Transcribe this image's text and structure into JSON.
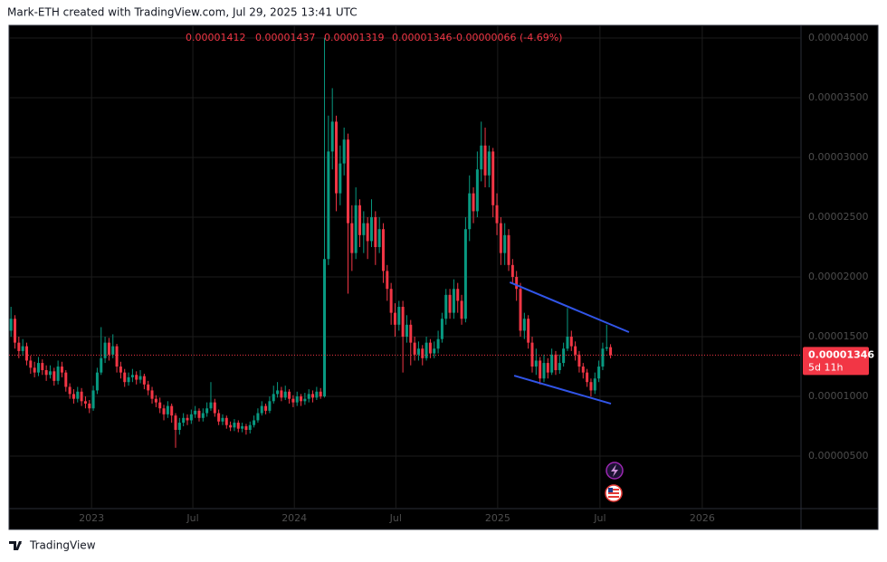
{
  "attribution": "Mark-ETH created with TradingView.com, Jul 29, 2025 13:41 UTC",
  "logo": "TradingView",
  "chart_data": {
    "type": "candlestick",
    "up_color": "#089981",
    "down_color": "#f23645",
    "header": {
      "open": "0.00001412",
      "high": "0.00001437",
      "low": "0.00001319",
      "close": "0.00001346",
      "change": "-0.00000066 (-4.69%)"
    },
    "price_tag": {
      "price": "0.00001346",
      "countdown": "5d 11h"
    },
    "ylim": [
      6.1e-07,
      4.106e-05
    ],
    "yticks": [
      {
        "value": 5e-06,
        "label": "0.00000500"
      },
      {
        "value": 1e-05,
        "label": "0.00001000"
      },
      {
        "value": 1.5e-05,
        "label": "0.00001500"
      },
      {
        "value": 2e-05,
        "label": "0.00002000"
      },
      {
        "value": 2.5e-05,
        "label": "0.00002500"
      },
      {
        "value": 3e-05,
        "label": "0.00003000"
      },
      {
        "value": 3.5e-05,
        "label": "0.00003500"
      },
      {
        "value": 4e-05,
        "label": "0.00004000"
      }
    ],
    "xlim": [
      -0.5,
      201.6
    ],
    "xticks": [
      {
        "value": 20.55,
        "label": "2023"
      },
      {
        "value": 46.4,
        "label": "Jul"
      },
      {
        "value": 72.3,
        "label": "2024"
      },
      {
        "value": 98.2,
        "label": "Jul"
      },
      {
        "value": 124.2,
        "label": "2025"
      },
      {
        "value": 150.3,
        "label": "Jul"
      },
      {
        "value": 176.4,
        "label": "2026"
      }
    ],
    "grid": true,
    "trendline_color": "#3155e8",
    "trendlines": [
      {
        "x": [
          127.3,
          157.7
        ],
        "y": [
          1.955e-05,
          1.538e-05
        ]
      },
      {
        "x": [
          128.4,
          153.1
        ],
        "y": [
          1.174e-05,
          9.39e-06
        ]
      }
    ],
    "open": [
      1.55e-05,
      1.65e-05,
      1.45e-05,
      1.38e-05,
      1.42e-05,
      1.3e-05,
      1.24e-05,
      1.2e-05,
      1.28e-05,
      1.22e-05,
      1.18e-05,
      1.21e-05,
      1.13e-05,
      1.25e-05,
      1.2e-05,
      1.08e-05,
      1.02e-05,
      9.8e-06,
      1.04e-05,
      9.6e-06,
      9.4e-06,
      9e-06,
      1.05e-05,
      1.2e-05,
      1.32e-05,
      1.45e-05,
      1.35e-05,
      1.42e-05,
      1.25e-05,
      1.2e-05,
      1.12e-05,
      1.16e-05,
      1.18e-05,
      1.14e-05,
      1.17e-05,
      1.1e-05,
      1.05e-05,
      9.8e-06,
      9.5e-06,
      9e-06,
      8.5e-06,
      9.2e-06,
      8.4e-06,
      7.2e-06,
      7.8e-06,
      8.2e-06,
      8e-06,
      8.5e-06,
      8.8e-06,
      8.2e-06,
      8.6e-06,
      9e-06,
      9.5e-06,
      8.6e-06,
      7.9e-06,
      8.2e-06,
      7.6e-06,
      7.4e-06,
      7.8e-06,
      7.3e-06,
      7.5e-06,
      7.2e-06,
      7.6e-06,
      8e-06,
      8.6e-06,
      9.2e-06,
      8.8e-06,
      9.6e-06,
      1.02e-05,
      1.05e-05,
      9.9e-06,
      1.04e-05,
      9.8e-06,
      9.5e-06,
      1e-05,
      9.6e-06,
      9.8e-06,
      1.02e-05,
      9.9e-06,
      1.04e-05,
      1e-05,
      2.15e-05,
      3.05e-05,
      3.3e-05,
      2.7e-05,
      2.95e-05,
      3.15e-05,
      2.45e-05,
      2.2e-05,
      2.6e-05,
      2.35e-05,
      2.45e-05,
      2.3e-05,
      2.5e-05,
      2.25e-05,
      2.4e-05,
      2.05e-05,
      1.9e-05,
      1.7e-05,
      1.6e-05,
      1.75e-05,
      1.5e-05,
      1.6e-05,
      1.45e-05,
      1.35e-05,
      1.4e-05,
      1.32e-05,
      1.45e-05,
      1.36e-05,
      1.4e-05,
      1.48e-05,
      1.65e-05,
      1.85e-05,
      1.7e-05,
      1.9e-05,
      1.8e-05,
      1.65e-05,
      2.4e-05,
      2.7e-05,
      2.55e-05,
      2.9e-05,
      3.1e-05,
      2.85e-05,
      3.05e-05,
      2.6e-05,
      2.45e-05,
      2.2e-05,
      2.35e-05,
      2.1e-05,
      2e-05,
      1.9e-05,
      1.55e-05,
      1.65e-05,
      1.45e-05,
      1.25e-05,
      1.3e-05,
      1.15e-05,
      1.28e-05,
      1.2e-05,
      1.35e-05,
      1.22e-05,
      1.28e-05,
      1.4e-05,
      1.5e-05,
      1.42e-05,
      1.35e-05,
      1.25e-05,
      1.2e-05,
      1.12e-05,
      1.05e-05,
      1.15e-05,
      1.25e-05,
      1.4e-05,
      1.412e-05
    ],
    "high": [
      1.75e-05,
      1.68e-05,
      1.5e-05,
      1.48e-05,
      1.45e-05,
      1.34e-05,
      1.29e-05,
      1.33e-05,
      1.31e-05,
      1.26e-05,
      1.26e-05,
      1.24e-05,
      1.3e-05,
      1.29e-05,
      1.22e-05,
      1.11e-05,
      1.06e-05,
      1.08e-05,
      1.07e-05,
      1e-05,
      9.7e-06,
      1.09e-05,
      1.24e-05,
      1.58e-05,
      1.5e-05,
      1.49e-05,
      1.52e-05,
      1.44e-05,
      1.29e-05,
      1.23e-05,
      1.2e-05,
      1.23e-05,
      1.21e-05,
      1.22e-05,
      1.19e-05,
      1.13e-05,
      1.08e-05,
      1.01e-05,
      9.9e-06,
      9.3e-06,
      9.6e-06,
      9.4e-06,
      8.6e-06,
      8.2e-06,
      8.6e-06,
      8.5e-06,
      8.9e-06,
      9.2e-06,
      9e-06,
      9e-06,
      9.5e-06,
      1.12e-05,
      9.8e-06,
      8.9e-06,
      8.5e-06,
      8.4e-06,
      7.9e-06,
      8.1e-06,
      8e-06,
      7.8e-06,
      7.7e-06,
      7.9e-06,
      8.4e-06,
      9e-06,
      9.6e-06,
      9.4e-06,
      1e-05,
      1.09e-05,
      1.12e-05,
      1.08e-05,
      1.09e-05,
      1.06e-05,
      1.01e-05,
      1.04e-05,
      1.02e-05,
      1.03e-05,
      1.06e-05,
      1.05e-05,
      1.08e-05,
      1.07e-05,
      4e-05,
      3.35e-05,
      3.58e-05,
      3.35e-05,
      3.1e-05,
      3.25e-05,
      3.2e-05,
      2.6e-05,
      2.75e-05,
      2.65e-05,
      2.55e-05,
      2.5e-05,
      2.65e-05,
      2.55e-05,
      2.5e-05,
      2.45e-05,
      2.1e-05,
      1.95e-05,
      1.78e-05,
      1.8e-05,
      1.8e-05,
      1.68e-05,
      1.64e-05,
      1.5e-05,
      1.46e-05,
      1.43e-05,
      1.5e-05,
      1.48e-05,
      1.46e-05,
      1.55e-05,
      1.7e-05,
      1.9e-05,
      1.9e-05,
      1.98e-05,
      1.95e-05,
      1.85e-05,
      2.5e-05,
      2.85e-05,
      2.75e-05,
      3.05e-05,
      3.3e-05,
      3.25e-05,
      3.1e-05,
      3.08e-05,
      2.7e-05,
      2.5e-05,
      2.45e-05,
      2.4e-05,
      2.15e-05,
      2.05e-05,
      1.95e-05,
      1.7e-05,
      1.68e-05,
      1.5e-05,
      1.4e-05,
      1.33e-05,
      1.35e-05,
      1.32e-05,
      1.4e-05,
      1.38e-05,
      1.35e-05,
      1.45e-05,
      1.74e-05,
      1.55e-05,
      1.46e-05,
      1.38e-05,
      1.28e-05,
      1.23e-05,
      1.15e-05,
      1.2e-05,
      1.3e-05,
      1.45e-05,
      1.6e-05,
      1.437e-05
    ],
    "low": [
      1.5e-05,
      1.4e-05,
      1.32e-05,
      1.34e-05,
      1.26e-05,
      1.19e-05,
      1.16e-05,
      1.17e-05,
      1.18e-05,
      1.13e-05,
      1.15e-05,
      1.09e-05,
      1.1e-05,
      1.16e-05,
      1.04e-05,
      9.8e-06,
      9.4e-06,
      9.5e-06,
      9.2e-06,
      9e-06,
      8.6e-06,
      8.8e-06,
      1.02e-05,
      1.18e-05,
      1.28e-05,
      1.3e-05,
      1.32e-05,
      1.2e-05,
      1.15e-05,
      1.08e-05,
      1.09e-05,
      1.12e-05,
      1.1e-05,
      1.11e-05,
      1.06e-05,
      1.01e-05,
      9.4e-06,
      9.1e-06,
      8.6e-06,
      8e-06,
      8.2e-06,
      7.8e-06,
      5.7e-06,
      6.8e-06,
      7.5e-06,
      7.6e-06,
      7.7e-06,
      8.2e-06,
      7.9e-06,
      7.9e-06,
      8.3e-06,
      8.8e-06,
      8.3e-06,
      7.6e-06,
      7.6e-06,
      7.3e-06,
      7.1e-06,
      7.1e-06,
      7e-06,
      7e-06,
      6.8e-06,
      6.9e-06,
      7.4e-06,
      7.8e-06,
      8.4e-06,
      8.5e-06,
      8.6e-06,
      9.4e-06,
      9.9e-06,
      9.6e-06,
      9.7e-06,
      9.4e-06,
      9.1e-06,
      9.2e-06,
      9.2e-06,
      9.3e-06,
      9.5e-06,
      9.5e-06,
      9.7e-06,
      9.8e-06,
      9.9e-06,
      2.1e-05,
      2.9e-05,
      2.55e-05,
      2.6e-05,
      2.85e-05,
      1.86e-05,
      2.05e-05,
      2.15e-05,
      2.25e-05,
      2.2e-05,
      2.15e-05,
      2.25e-05,
      2.1e-05,
      2.2e-05,
      1.95e-05,
      1.8e-05,
      1.6e-05,
      1.5e-05,
      1.55e-05,
      1.2e-05,
      1.45e-05,
      1.26e-05,
      1.3e-05,
      1.3e-05,
      1.26e-05,
      1.3e-05,
      1.32e-05,
      1.32e-05,
      1.36e-05,
      1.45e-05,
      1.6e-05,
      1.65e-05,
      1.65e-05,
      1.7e-05,
      1.6e-05,
      1.62e-05,
      2.3e-05,
      2.45e-05,
      2.5e-05,
      2.8e-05,
      2.75e-05,
      2.75e-05,
      2.5e-05,
      2.35e-05,
      2.1e-05,
      2.1e-05,
      2.05e-05,
      1.95e-05,
      1.8e-05,
      1.5e-05,
      1.48e-05,
      1.4e-05,
      1.2e-05,
      1.18e-05,
      1.1e-05,
      1.12e-05,
      1.15e-05,
      1.18e-05,
      1.18e-05,
      1.19e-05,
      1.25e-05,
      1.38e-05,
      1.38e-05,
      1.3e-05,
      1.2e-05,
      1.15e-05,
      1.08e-05,
      1e-05,
      1.02e-05,
      1.12e-05,
      1.22e-05,
      1.38e-05,
      1.319e-05
    ],
    "close": [
      1.65e-05,
      1.45e-05,
      1.38e-05,
      1.42e-05,
      1.3e-05,
      1.24e-05,
      1.2e-05,
      1.28e-05,
      1.22e-05,
      1.18e-05,
      1.21e-05,
      1.13e-05,
      1.25e-05,
      1.2e-05,
      1.08e-05,
      1.02e-05,
      9.8e-06,
      1.04e-05,
      9.6e-06,
      9.4e-06,
      9e-06,
      1.05e-05,
      1.2e-05,
      1.32e-05,
      1.45e-05,
      1.35e-05,
      1.42e-05,
      1.25e-05,
      1.2e-05,
      1.12e-05,
      1.16e-05,
      1.18e-05,
      1.14e-05,
      1.17e-05,
      1.1e-05,
      1.05e-05,
      9.8e-06,
      9.5e-06,
      9e-06,
      8.5e-06,
      9.2e-06,
      8.4e-06,
      7.2e-06,
      7.8e-06,
      8.2e-06,
      8e-06,
      8.5e-06,
      8.8e-06,
      8.2e-06,
      8.6e-06,
      9e-06,
      9.5e-06,
      8.6e-06,
      7.9e-06,
      8.2e-06,
      7.6e-06,
      7.4e-06,
      7.8e-06,
      7.3e-06,
      7.5e-06,
      7.2e-06,
      7.6e-06,
      8e-06,
      8.6e-06,
      9.2e-06,
      8.8e-06,
      9.6e-06,
      1.02e-05,
      1.05e-05,
      9.9e-06,
      1.04e-05,
      9.8e-06,
      9.5e-06,
      1e-05,
      9.6e-06,
      9.8e-06,
      1.02e-05,
      9.9e-06,
      1.04e-05,
      1e-05,
      2.15e-05,
      3.05e-05,
      3.3e-05,
      2.7e-05,
      2.95e-05,
      3.15e-05,
      2.45e-05,
      2.2e-05,
      2.6e-05,
      2.35e-05,
      2.45e-05,
      2.3e-05,
      2.5e-05,
      2.25e-05,
      2.4e-05,
      2.05e-05,
      1.9e-05,
      1.7e-05,
      1.6e-05,
      1.75e-05,
      1.5e-05,
      1.6e-05,
      1.45e-05,
      1.35e-05,
      1.4e-05,
      1.32e-05,
      1.45e-05,
      1.36e-05,
      1.4e-05,
      1.48e-05,
      1.65e-05,
      1.85e-05,
      1.7e-05,
      1.9e-05,
      1.8e-05,
      1.65e-05,
      2.4e-05,
      2.7e-05,
      2.55e-05,
      2.9e-05,
      3.1e-05,
      2.85e-05,
      3.05e-05,
      2.6e-05,
      2.45e-05,
      2.2e-05,
      2.35e-05,
      2.1e-05,
      2e-05,
      1.9e-05,
      1.55e-05,
      1.65e-05,
      1.45e-05,
      1.25e-05,
      1.3e-05,
      1.15e-05,
      1.28e-05,
      1.2e-05,
      1.35e-05,
      1.22e-05,
      1.28e-05,
      1.4e-05,
      1.5e-05,
      1.42e-05,
      1.35e-05,
      1.25e-05,
      1.2e-05,
      1.12e-05,
      1.05e-05,
      1.15e-05,
      1.25e-05,
      1.4e-05,
      1.412e-05,
      1.346e-05
    ]
  }
}
